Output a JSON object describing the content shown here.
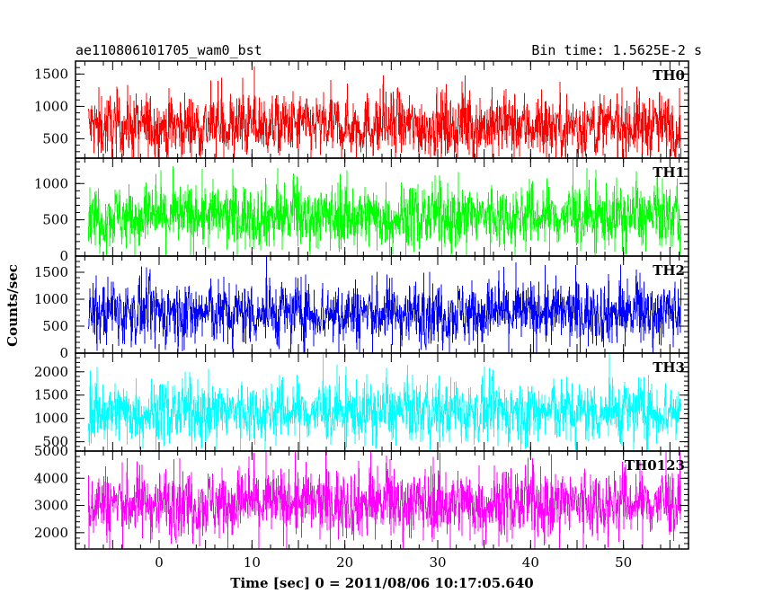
{
  "chart_data": {
    "type": "line",
    "title": "ae110806101705_wam0_bst",
    "bin_time_label": "Bin time: 1.5625E-2 s",
    "xlabel": "Time [sec] 0 = 2011/08/06 10:17:05.640",
    "ylabel": "Counts/sec",
    "xlim": [
      -9,
      57
    ],
    "data_xrange": [
      -7.6,
      56.2
    ],
    "x_ticks": [
      "0",
      "10",
      "20",
      "30",
      "40",
      "50"
    ],
    "panels": [
      {
        "name": "TH0",
        "color": "#ff0000",
        "ylim": [
          200,
          1700
        ],
        "yticks": [
          500,
          1000,
          1500
        ],
        "ytick_labels": [
          "500",
          "1000",
          "1500"
        ],
        "typical_range": [
          150,
          1500
        ],
        "mean": 700
      },
      {
        "name": "TH1",
        "color": "#00ff00",
        "ylim": [
          0,
          1350
        ],
        "yticks": [
          0,
          500,
          1000
        ],
        "ytick_labels": [
          "0",
          "500",
          "1000"
        ],
        "typical_range": [
          50,
          1250
        ],
        "mean": 550
      },
      {
        "name": "TH2",
        "color": "#0000ff",
        "ylim": [
          0,
          1800
        ],
        "yticks": [
          0,
          500,
          1000,
          1500
        ],
        "ytick_labels": [
          "0",
          "500",
          "1000",
          "1500"
        ],
        "typical_range": [
          80,
          1700
        ],
        "mean": 750
      },
      {
        "name": "TH3",
        "color": "#00ffff",
        "ylim": [
          300,
          2400
        ],
        "yticks": [
          500,
          1000,
          1500,
          2000
        ],
        "ytick_labels": [
          "500",
          "1000",
          "1500",
          "2000"
        ],
        "typical_range": [
          500,
          2300
        ],
        "mean": 1150
      },
      {
        "name": "TH0123",
        "color": "#ff00ff",
        "ylim": [
          1400,
          5000
        ],
        "yticks": [
          2000,
          3000,
          4000,
          5000
        ],
        "ytick_labels": [
          "2000",
          "3000",
          "4000",
          "5000"
        ],
        "typical_range": [
          1500,
          5000
        ],
        "mean": 3100
      }
    ]
  }
}
